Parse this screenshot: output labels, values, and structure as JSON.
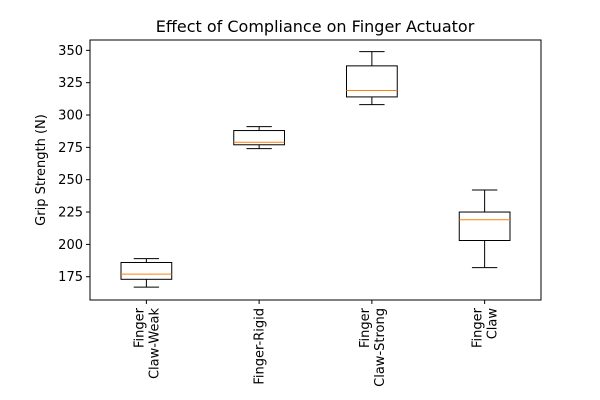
{
  "chart_data": {
    "type": "box",
    "title": "Effect of Compliance on Finger Actuator",
    "xlabel": "",
    "ylabel": "Grip Strength (N)",
    "ylim": [
      157,
      358
    ],
    "yticks": [
      175,
      200,
      225,
      250,
      275,
      300,
      325,
      350
    ],
    "grid": false,
    "categories": [
      [
        "Finger",
        "Claw-Weak"
      ],
      [
        "Finger-Rigid"
      ],
      [
        "Finger",
        "Claw-Strong"
      ],
      [
        "Finger",
        "Claw"
      ]
    ],
    "boxes": [
      {
        "whisker_low": 167,
        "q1": 173,
        "median": 177,
        "q3": 186,
        "whisker_high": 189
      },
      {
        "whisker_low": 274,
        "q1": 277,
        "median": 279,
        "q3": 288,
        "whisker_high": 291
      },
      {
        "whisker_low": 308,
        "q1": 314,
        "median": 319,
        "q3": 338,
        "whisker_high": 349
      },
      {
        "whisker_low": 182,
        "q1": 203,
        "median": 219,
        "q3": 225,
        "whisker_high": 242
      }
    ],
    "colors": {
      "box": "#000000",
      "median": "#ff7f0e"
    }
  }
}
